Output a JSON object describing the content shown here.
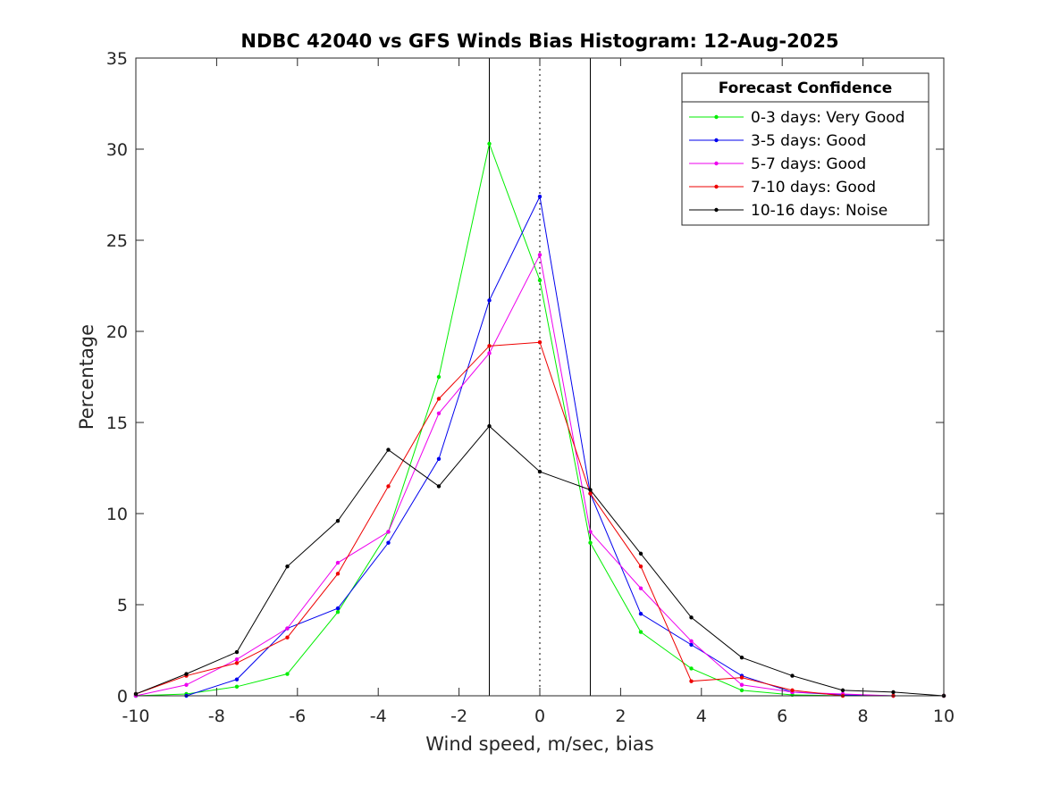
{
  "chart_data": {
    "type": "line",
    "title": "NDBC 42040 vs GFS Winds Bias Histogram: 12-Aug-2025",
    "xlabel": "Wind speed, m/sec, bias",
    "ylabel": "Percentage",
    "xlim": [
      -10,
      10
    ],
    "ylim": [
      0,
      35
    ],
    "xticks": [
      -10,
      -8,
      -6,
      -4,
      -2,
      0,
      2,
      4,
      6,
      8,
      10
    ],
    "yticks": [
      0,
      5,
      10,
      15,
      20,
      25,
      30,
      35
    ],
    "grid": false,
    "legend": {
      "title": "Forecast Confidence",
      "placement": "top-right"
    },
    "reference_lines": [
      {
        "x": -1.25,
        "style": "solid",
        "color": "#000000"
      },
      {
        "x": 0,
        "style": "dotted",
        "color": "#000000"
      },
      {
        "x": 1.25,
        "style": "solid",
        "color": "#000000"
      }
    ],
    "x": [
      -10,
      -8.75,
      -7.5,
      -6.25,
      -5,
      -3.75,
      -2.5,
      -1.25,
      0,
      1.25,
      2.5,
      3.75,
      5,
      6.25,
      7.5,
      8.75,
      10
    ],
    "series": [
      {
        "name": "0-3 days: Very Good",
        "color": "#00ee00",
        "values": [
          0,
          0.1,
          0.5,
          1.2,
          4.6,
          9.0,
          17.5,
          30.3,
          22.8,
          8.4,
          3.5,
          1.5,
          0.3,
          0.05,
          0,
          0,
          0
        ]
      },
      {
        "name": "3-5 days: Good",
        "color": "#0000ee",
        "values": [
          0,
          0,
          0.9,
          3.7,
          4.8,
          8.4,
          13.0,
          21.7,
          27.4,
          11.1,
          4.5,
          2.8,
          1.1,
          0.2,
          0.05,
          0,
          0
        ]
      },
      {
        "name": "5-7 days: Good",
        "color": "#ee00ee",
        "values": [
          0,
          0.6,
          2.0,
          3.7,
          7.3,
          9.0,
          15.5,
          18.8,
          24.2,
          9.0,
          5.9,
          3.0,
          0.6,
          0.2,
          0.1,
          0,
          0
        ]
      },
      {
        "name": "7-10 days: Good",
        "color": "#ee0000",
        "values": [
          0.1,
          1.1,
          1.8,
          3.2,
          6.7,
          11.5,
          16.3,
          19.2,
          19.4,
          11.1,
          7.1,
          0.8,
          1.0,
          0.3,
          0,
          0,
          0
        ]
      },
      {
        "name": "10-16 days: Noise",
        "color": "#000000",
        "values": [
          0.1,
          1.2,
          2.4,
          7.1,
          9.6,
          13.5,
          11.5,
          14.8,
          12.3,
          11.3,
          7.8,
          4.3,
          2.1,
          1.1,
          0.3,
          0.2,
          0
        ]
      }
    ]
  }
}
